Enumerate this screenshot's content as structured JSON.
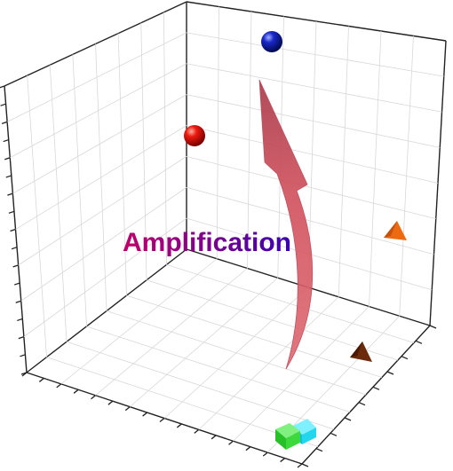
{
  "chart_data": {
    "type": "scatter",
    "title": "",
    "xlabel": "",
    "ylabel": "",
    "zlabel": "",
    "grid": true,
    "annotations": [
      {
        "text": "Amplification",
        "gradient": [
          "#c0006a",
          "#3a00b0"
        ]
      }
    ],
    "arrow": {
      "from": [
        0.78,
        0.85,
        0.3
      ],
      "to": [
        0.67,
        0.62,
        0.92
      ],
      "color": "#d45560"
    },
    "points": [
      {
        "x": 0.89,
        "y": 0.95,
        "z": 0.08,
        "marker": "cube",
        "color": "#3cd83c"
      },
      {
        "x": 0.91,
        "y": 0.98,
        "z": 0.11,
        "marker": "cube",
        "color": "#22d6ee"
      },
      {
        "x": 0.79,
        "y": 0.75,
        "z": 0.22,
        "marker": "triangle",
        "color": "#6b2a0a"
      },
      {
        "x": 0.55,
        "y": 0.3,
        "z": 0.62,
        "marker": "triangle",
        "color": "#ee6a10"
      },
      {
        "x": 0.02,
        "y": 0.02,
        "z": 0.8,
        "marker": "sphere",
        "color": "#e81010"
      },
      {
        "x": 0.55,
        "y": 0.08,
        "z": 1.0,
        "marker": "sphere",
        "color": "#1020b0"
      }
    ]
  }
}
